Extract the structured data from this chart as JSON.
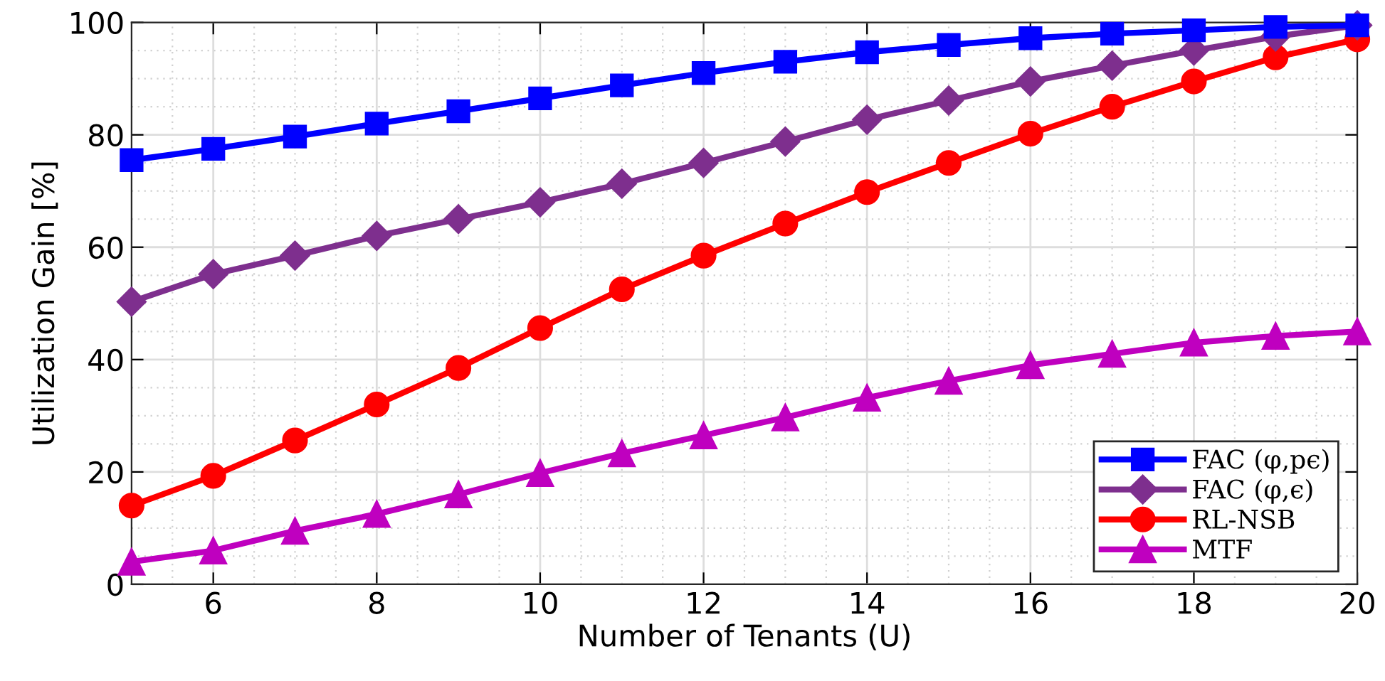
{
  "chart_data": {
    "type": "line",
    "xlabel": "Number of Tenants (U)",
    "ylabel": "Utilization Gain [%]",
    "x": [
      5,
      6,
      7,
      8,
      9,
      10,
      11,
      12,
      13,
      14,
      15,
      16,
      17,
      18,
      19,
      20
    ],
    "series": [
      {
        "name": "FAC (φ,pϵ)",
        "color": "#0000ff",
        "marker": "square",
        "values": [
          75.5,
          77.5,
          79.7,
          82,
          84.2,
          86.5,
          88.8,
          91,
          93,
          94.7,
          96,
          97.2,
          98,
          98.6,
          99.2,
          99.5
        ]
      },
      {
        "name": "FAC (φ,ϵ)",
        "color": "#7e2f8e",
        "marker": "diamond",
        "values": [
          50.3,
          55.2,
          58.5,
          62,
          65,
          68,
          71.3,
          75,
          78.8,
          82.7,
          86.1,
          89.5,
          92.3,
          95,
          97.5,
          99.5
        ]
      },
      {
        "name": "RL-NSB",
        "color": "#ff0000",
        "marker": "circle",
        "values": [
          14,
          19.3,
          25.6,
          32,
          38.5,
          45.6,
          52.5,
          58.5,
          64.2,
          69.8,
          75,
          80.2,
          85,
          89.5,
          93.8,
          97
        ]
      },
      {
        "name": "MTF",
        "color": "#bf00bf",
        "marker": "triangle",
        "values": [
          4,
          6,
          9.5,
          12.5,
          16,
          19.8,
          23.3,
          26.5,
          29.7,
          33.2,
          36.2,
          39,
          41,
          43,
          44.2,
          45
        ]
      }
    ],
    "xlim": [
      5,
      20
    ],
    "xticks": [
      6,
      8,
      10,
      12,
      14,
      16,
      18,
      20
    ],
    "ylim": [
      0,
      100
    ],
    "yticks": [
      0,
      20,
      40,
      60,
      80,
      100
    ],
    "grid": true,
    "legend": "bottom right",
    "line_style": "solid"
  }
}
